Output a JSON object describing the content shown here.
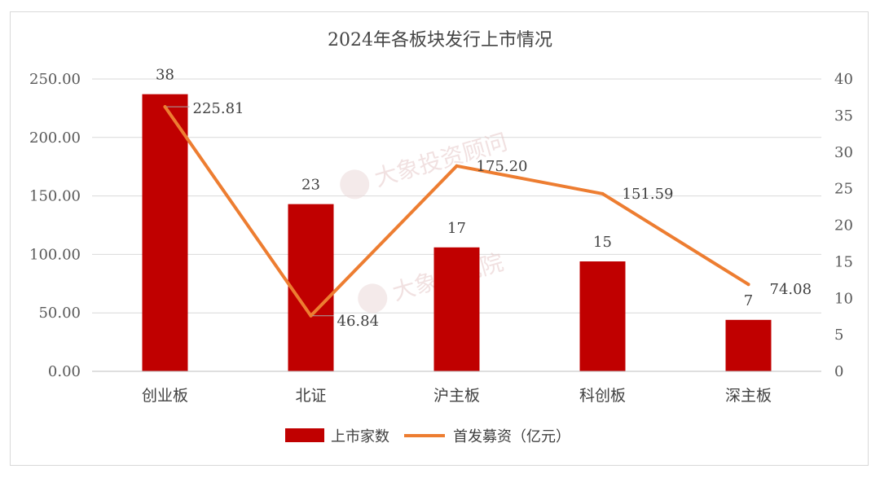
{
  "chart_data": {
    "type": "bar+line",
    "title": "2024年各板块发行上市情况",
    "categories": [
      "创业板",
      "北证",
      "沪主板",
      "科创板",
      "深主板"
    ],
    "series": [
      {
        "name": "上市家数",
        "type": "bar",
        "axis": "right",
        "values": [
          38,
          23,
          17,
          15,
          7
        ],
        "bar_heights_on_left_axis": [
          237,
          143,
          106,
          94,
          44
        ],
        "color": "#C00000"
      },
      {
        "name": "首发募资（亿元）",
        "type": "line",
        "axis": "right",
        "values": [
          36.2,
          7.6,
          28.1,
          24.3,
          11.9
        ],
        "labels": [
          "225.81",
          "46.84",
          "175.20",
          "151.59",
          "74.08"
        ],
        "color": "#ED7D31"
      }
    ],
    "left_axis": {
      "ylim": [
        0,
        250
      ],
      "ticks": [
        "0.00",
        "50.00",
        "100.00",
        "150.00",
        "200.00",
        "250.00"
      ]
    },
    "right_axis": {
      "ylim": [
        0,
        40
      ],
      "ticks": [
        "0",
        "5",
        "10",
        "15",
        "20",
        "25",
        "30",
        "35",
        "40"
      ]
    },
    "grid": true,
    "legend_position": "bottom"
  },
  "watermarks": [
    "大象投资顾问",
    "大象研究院"
  ]
}
